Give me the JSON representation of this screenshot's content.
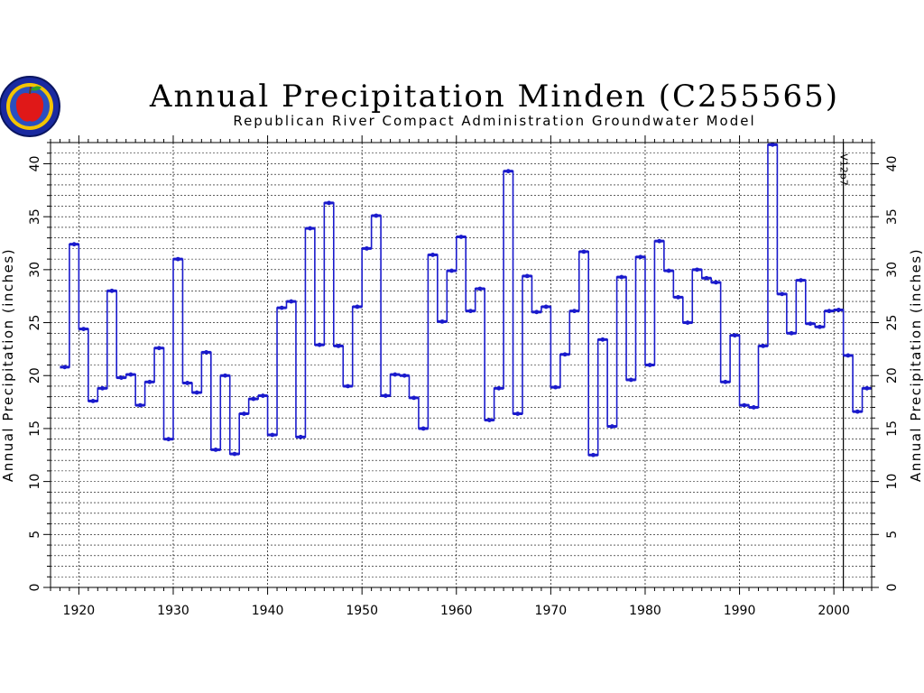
{
  "chart_data": {
    "type": "line",
    "title": "Annual Precipitation Minden (C255565)",
    "subtitle": "Republican River Compact Administration Groundwater Model",
    "ylabel": "Annual Precipitation (inches)",
    "xlabel": "",
    "xlim": [
      1917,
      2004
    ],
    "ylim": [
      0,
      42
    ],
    "x_ticks": [
      "1920",
      "1930",
      "1940",
      "1950",
      "1960",
      "1970",
      "1980",
      "1990",
      "2000"
    ],
    "y_ticks": [
      "0",
      "5",
      "10",
      "15",
      "20",
      "25",
      "30",
      "35",
      "40"
    ],
    "grid": true,
    "series_color": "#1a1acc",
    "step": true,
    "series": [
      {
        "x": [
          1918,
          1919,
          1920,
          1921,
          1922,
          1923,
          1924,
          1925,
          1926,
          1927,
          1928,
          1929,
          1930,
          1931,
          1932,
          1933,
          1934,
          1935,
          1936,
          1937,
          1938,
          1939,
          1940,
          1941,
          1942,
          1943,
          1944,
          1945,
          1946,
          1947,
          1948,
          1949,
          1950,
          1951,
          1952,
          1953,
          1954,
          1955,
          1956,
          1957,
          1958,
          1959,
          1960,
          1961,
          1962,
          1963,
          1964,
          1965,
          1966,
          1967,
          1968,
          1969,
          1970,
          1971,
          1972,
          1973,
          1974,
          1975,
          1976,
          1977,
          1978,
          1979,
          1980,
          1981,
          1982,
          1983,
          1984,
          1985,
          1986,
          1987,
          1988,
          1989,
          1990,
          1991,
          1992,
          1993,
          1994,
          1995,
          1996,
          1997,
          1998,
          1999,
          2000,
          2001,
          2002,
          2003
        ],
        "values": [
          20.8,
          32.4,
          24.4,
          17.6,
          18.8,
          28.0,
          19.8,
          20.1,
          17.2,
          19.4,
          22.6,
          14.0,
          31.0,
          19.3,
          18.4,
          22.2,
          13.0,
          20.0,
          12.6,
          16.4,
          17.8,
          18.1,
          14.4,
          26.4,
          27.0,
          14.2,
          33.9,
          22.9,
          36.3,
          22.8,
          19.0,
          26.5,
          32.0,
          35.1,
          18.1,
          20.1,
          20.0,
          17.9,
          15.0,
          31.4,
          25.1,
          29.9,
          33.1,
          26.1,
          28.2,
          15.8,
          18.8,
          39.3,
          16.4,
          29.4,
          26.0,
          26.5,
          18.9,
          22.0,
          26.1,
          31.7,
          12.5,
          23.4,
          15.2,
          29.3,
          19.6,
          31.2,
          21.0,
          32.7,
          29.9,
          27.4,
          25.0,
          30.0,
          29.2,
          28.8,
          19.4,
          23.8,
          17.2,
          17.0,
          22.8,
          41.8,
          27.7,
          24.0,
          29.0,
          24.9,
          24.6,
          26.1,
          26.2,
          21.9,
          16.6,
          18.8
        ]
      }
    ],
    "marker_line": {
      "label": "V12p7",
      "x": 2001
    }
  },
  "logo": {
    "text": "REPUBLICAN RIVER COMPACT",
    "color": "#1a2aa0"
  }
}
